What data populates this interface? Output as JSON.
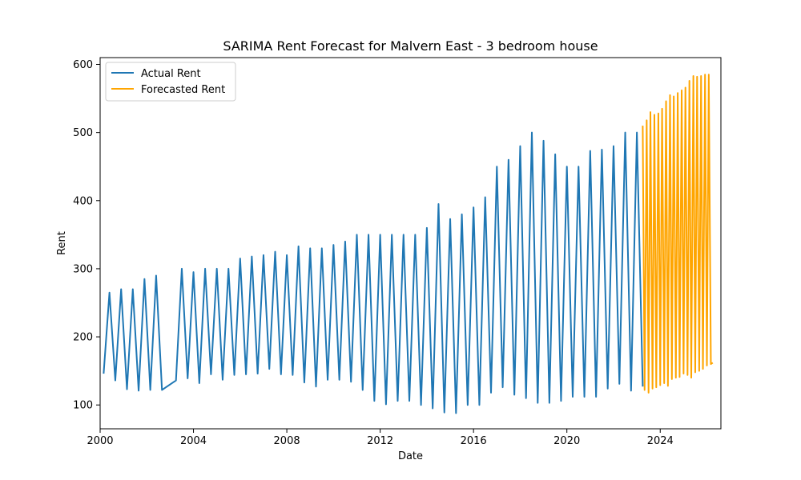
{
  "chart_data": {
    "type": "line",
    "title": "SARIMA Rent Forecast for Malvern East - 3 bedroom house",
    "xlabel": "Date",
    "ylabel": "Rent",
    "xlim": [
      2000.0,
      2026.6
    ],
    "ylim": [
      65,
      610
    ],
    "x_ticks": [
      2000,
      2004,
      2008,
      2012,
      2016,
      2020,
      2024
    ],
    "y_ticks": [
      100,
      200,
      300,
      400,
      500,
      600
    ],
    "grid": false,
    "legend_position": "top-left",
    "series": [
      {
        "name": "Actual Rent",
        "color": "#1f77b4",
        "x": [
          2000.15,
          2000.4,
          2000.65,
          2000.9,
          2001.15,
          2001.4,
          2001.65,
          2001.9,
          2002.15,
          2002.4,
          2002.65,
          2003.25,
          2003.5,
          2003.75,
          2004.0,
          2004.25,
          2004.5,
          2004.75,
          2005.0,
          2005.25,
          2005.5,
          2005.75,
          2006.0,
          2006.25,
          2006.5,
          2006.75,
          2007.0,
          2007.25,
          2007.5,
          2007.75,
          2008.0,
          2008.25,
          2008.5,
          2008.75,
          2009.0,
          2009.25,
          2009.5,
          2009.75,
          2010.0,
          2010.25,
          2010.5,
          2010.75,
          2011.0,
          2011.25,
          2011.5,
          2011.75,
          2012.0,
          2012.25,
          2012.5,
          2012.75,
          2013.0,
          2013.25,
          2013.5,
          2013.75,
          2014.0,
          2014.25,
          2014.5,
          2014.75,
          2015.0,
          2015.25,
          2015.5,
          2015.75,
          2016.0,
          2016.25,
          2016.5,
          2016.75,
          2017.0,
          2017.25,
          2017.5,
          2017.75,
          2018.0,
          2018.25,
          2018.5,
          2018.75,
          2019.0,
          2019.25,
          2019.5,
          2019.75,
          2020.0,
          2020.25,
          2020.5,
          2020.75,
          2021.0,
          2021.25,
          2021.5,
          2021.75,
          2022.0,
          2022.25,
          2022.5,
          2022.75,
          2023.0,
          2023.25
        ],
        "values": [
          146,
          265,
          136,
          270,
          123,
          270,
          121,
          285,
          122,
          290,
          122,
          136,
          300,
          139,
          295,
          132,
          300,
          145,
          300,
          137,
          300,
          144,
          315,
          145,
          318,
          146,
          320,
          153,
          325,
          145,
          320,
          144,
          333,
          133,
          330,
          127,
          330,
          137,
          335,
          137,
          340,
          134,
          350,
          122,
          350,
          106,
          350,
          101,
          350,
          106,
          350,
          106,
          350,
          100,
          360,
          95,
          395,
          89,
          373,
          88,
          380,
          100,
          390,
          100,
          405,
          118,
          450,
          126,
          460,
          115,
          480,
          110,
          500,
          103,
          488,
          103,
          468,
          106,
          450,
          112,
          450,
          112,
          473,
          112,
          475,
          124,
          480,
          131,
          500,
          121,
          500,
          127
        ]
      },
      {
        "name": "Forecasted Rent",
        "color": "#ffa500",
        "x": [
          2023.25,
          2023.33,
          2023.42,
          2023.5,
          2023.58,
          2023.67,
          2023.75,
          2023.83,
          2023.92,
          2024.0,
          2024.08,
          2024.17,
          2024.25,
          2024.33,
          2024.42,
          2024.5,
          2024.58,
          2024.67,
          2024.75,
          2024.83,
          2024.92,
          2025.0,
          2025.08,
          2025.17,
          2025.25,
          2025.33,
          2025.42,
          2025.5,
          2025.58,
          2025.67,
          2025.75,
          2025.83,
          2025.92,
          2026.0,
          2026.08,
          2026.17,
          2026.25
        ],
        "values": [
          510,
          122,
          518,
          118,
          530,
          124,
          526,
          126,
          528,
          129,
          535,
          132,
          546,
          128,
          555,
          138,
          553,
          140,
          558,
          141,
          562,
          146,
          566,
          144,
          576,
          140,
          583,
          148,
          582,
          150,
          583,
          153,
          585,
          158,
          585,
          160,
          162
        ]
      }
    ]
  }
}
